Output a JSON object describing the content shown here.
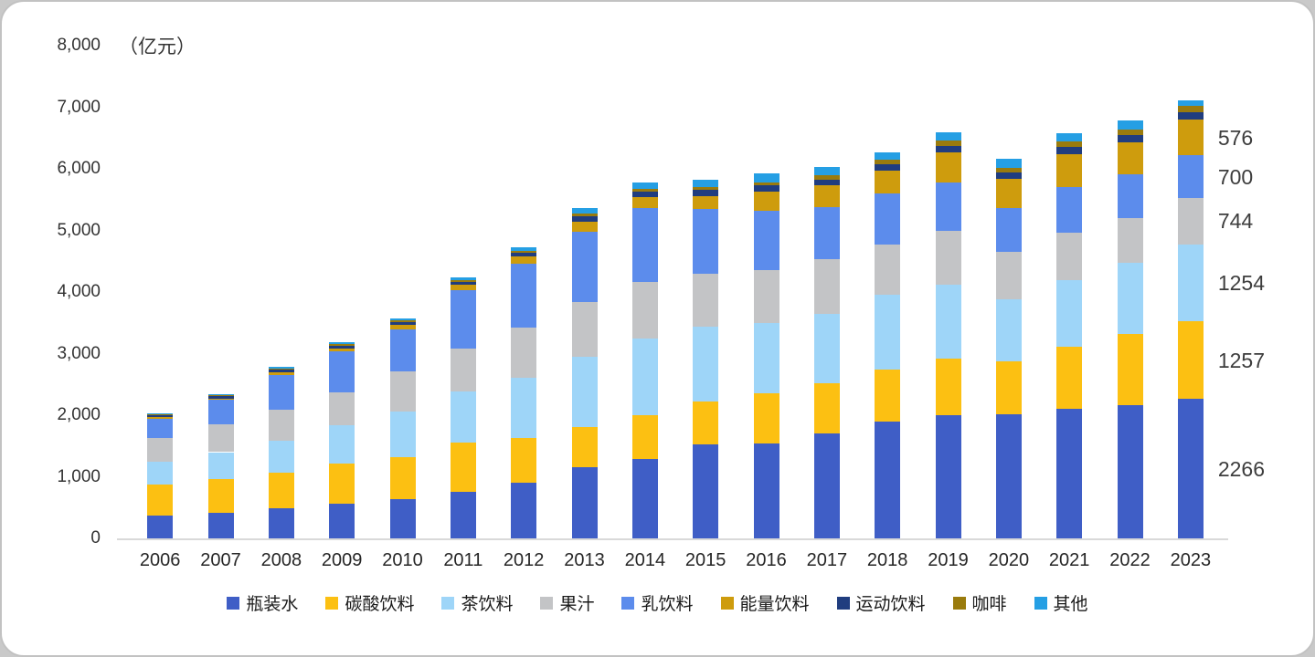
{
  "chart_data": {
    "type": "bar",
    "stacked": true,
    "unit": "（亿元）",
    "ylim": [
      0,
      8000
    ],
    "ytick_step": 1000,
    "grid": false,
    "legend_position": "bottom",
    "categories": [
      "2006",
      "2007",
      "2008",
      "2009",
      "2010",
      "2011",
      "2012",
      "2013",
      "2014",
      "2015",
      "2016",
      "2017",
      "2018",
      "2019",
      "2020",
      "2021",
      "2022",
      "2023"
    ],
    "series": [
      {
        "name": "瓶装水",
        "color": "#3F5EC6",
        "values": [
          370,
          420,
          490,
          570,
          630,
          755,
          910,
          1150,
          1290,
          1520,
          1540,
          1700,
          1900,
          2000,
          2010,
          2100,
          2160,
          2266
        ]
      },
      {
        "name": "碳酸饮料",
        "color": "#FCC012",
        "values": [
          500,
          540,
          570,
          640,
          690,
          800,
          720,
          650,
          710,
          700,
          814,
          814,
          840,
          913,
          864,
          1012,
          1160,
          1257
        ]
      },
      {
        "name": "茶饮料",
        "color": "#9ED5F8",
        "values": [
          370,
          440,
          520,
          630,
          740,
          830,
          980,
          1150,
          1250,
          1210,
          1135,
          1135,
          1210,
          1210,
          1012,
          1086,
          1160,
          1254
        ]
      },
      {
        "name": "果汁",
        "color": "#C3C4C6",
        "values": [
          385,
          450,
          510,
          530,
          650,
          700,
          815,
          890,
          910,
          865,
          864,
          880,
          814,
          864,
          765,
          765,
          716,
          744
        ]
      },
      {
        "name": "乳饮料",
        "color": "#5C8CEC",
        "values": [
          320,
          395,
          560,
          665,
          690,
          950,
          1030,
          1135,
          1200,
          1060,
          960,
          850,
          840,
          790,
          716,
          740,
          716,
          700
        ]
      },
      {
        "name": "能量饮料",
        "color": "#CE9C0D",
        "values": [
          20,
          25,
          40,
          50,
          60,
          80,
          120,
          170,
          180,
          200,
          320,
          350,
          370,
          490,
          470,
          540,
          520,
          576
        ]
      },
      {
        "name": "运动饮料",
        "color": "#203D7F",
        "values": [
          40,
          45,
          50,
          48,
          50,
          55,
          60,
          85,
          95,
          100,
          95,
          100,
          105,
          110,
          110,
          115,
          120,
          120
        ]
      },
      {
        "name": "咖啡",
        "color": "#9A7B0D",
        "values": [
          10,
          12,
          15,
          18,
          25,
          28,
          32,
          38,
          42,
          48,
          55,
          60,
          70,
          75,
          75,
          80,
          85,
          100
        ]
      },
      {
        "name": "其他",
        "color": "#259FE4",
        "values": [
          15,
          18,
          25,
          28,
          40,
          45,
          60,
          95,
          95,
          120,
          145,
          145,
          120,
          145,
          145,
          145,
          145,
          90
        ]
      }
    ],
    "end_labels": {
      "category": "2023",
      "entries": [
        {
          "series": "能量饮料",
          "text": "576"
        },
        {
          "series": "乳饮料",
          "text": "700"
        },
        {
          "series": "果汁",
          "text": "744"
        },
        {
          "series": "茶饮料",
          "text": "1254"
        },
        {
          "series": "碳酸饮料",
          "text": "1257"
        },
        {
          "series": "瓶装水",
          "text": "2266"
        }
      ]
    }
  }
}
